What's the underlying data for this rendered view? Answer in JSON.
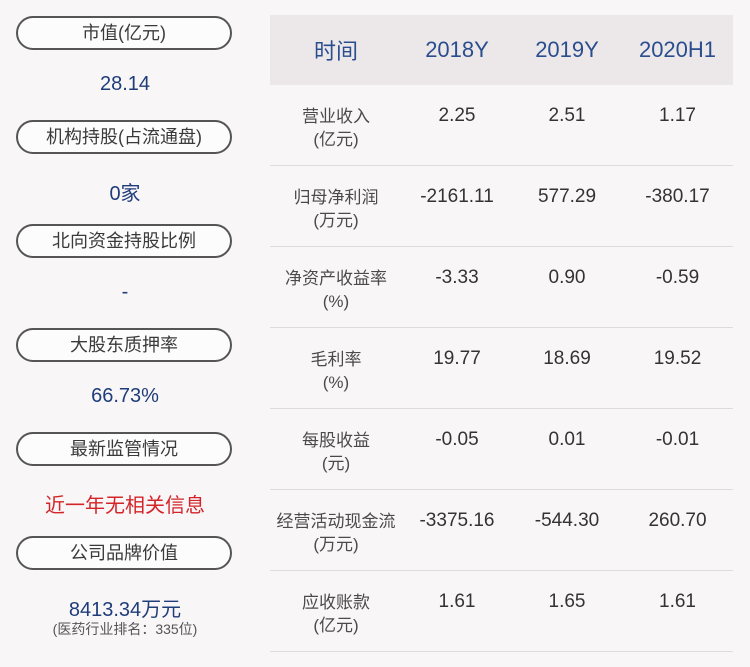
{
  "left_panel": {
    "items": [
      {
        "label": "市值(亿元)",
        "value": "28.14"
      },
      {
        "label": "机构持股(占流通盘)",
        "value": "0家"
      },
      {
        "label": "北向资金持股比例",
        "value": "-"
      },
      {
        "label": "大股东质押率",
        "value": "66.73%"
      },
      {
        "label": "最新监管情况",
        "value": "近一年无相关信息"
      },
      {
        "label": "公司品牌价值",
        "value": "8413.34万元",
        "note": "(医药行业排名：335位)"
      }
    ]
  },
  "table": {
    "header": [
      "时间",
      "2018Y",
      "2019Y",
      "2020H1"
    ],
    "rows": [
      {
        "label1": "营业收入",
        "label2": "(亿元)",
        "values": [
          "2.25",
          "2.51",
          "1.17"
        ]
      },
      {
        "label1": "归母净利润",
        "label2": "(万元)",
        "values": [
          "-2161.11",
          "577.29",
          "-380.17"
        ]
      },
      {
        "label1": "净资产收益率",
        "label2": "(%)",
        "values": [
          "-3.33",
          "0.90",
          "-0.59"
        ]
      },
      {
        "label1": "毛利率",
        "label2": "(%)",
        "values": [
          "19.77",
          "18.69",
          "19.52"
        ]
      },
      {
        "label1": "每股收益",
        "label2": "(元)",
        "values": [
          "-0.05",
          "0.01",
          "-0.01"
        ]
      },
      {
        "label1": "经营活动现金流",
        "label2": "(万元)",
        "values": [
          "-3375.16",
          "-544.30",
          "260.70"
        ]
      },
      {
        "label1": "应收账款",
        "label2": "(亿元)",
        "values": [
          "1.61",
          "1.65",
          "1.61"
        ]
      }
    ]
  },
  "colors": {
    "accent": "#1f3d7a",
    "warning": "#d3242a",
    "header_bg": "#ece8ea"
  }
}
